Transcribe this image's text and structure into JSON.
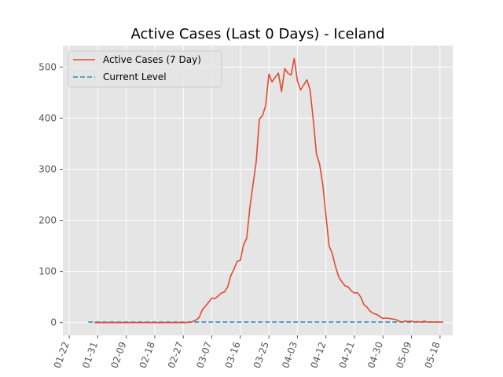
{
  "chart_data": {
    "type": "line",
    "title": "Active Cases (Last 0 Days) - Iceland",
    "xlabel": "",
    "ylabel": "",
    "x_start": "2020-01-28",
    "x_end": "2020-05-19",
    "xlim": [
      "2020-01-20",
      "2020-05-22"
    ],
    "ylim": [
      -25,
      542
    ],
    "x_ticks": [
      {
        "date": "2020-01-22",
        "label": "01-22"
      },
      {
        "date": "2020-01-31",
        "label": "01-31"
      },
      {
        "date": "2020-02-09",
        "label": "02-09"
      },
      {
        "date": "2020-02-18",
        "label": "02-18"
      },
      {
        "date": "2020-02-27",
        "label": "02-27"
      },
      {
        "date": "2020-03-07",
        "label": "03-07"
      },
      {
        "date": "2020-03-16",
        "label": "03-16"
      },
      {
        "date": "2020-03-25",
        "label": "03-25"
      },
      {
        "date": "2020-04-03",
        "label": "04-03"
      },
      {
        "date": "2020-04-12",
        "label": "04-12"
      },
      {
        "date": "2020-04-21",
        "label": "04-21"
      },
      {
        "date": "2020-04-30",
        "label": "04-30"
      },
      {
        "date": "2020-05-09",
        "label": "05-09"
      },
      {
        "date": "2020-05-18",
        "label": "05-18"
      }
    ],
    "y_ticks": [
      0,
      100,
      200,
      300,
      400,
      500
    ],
    "grid": true,
    "legend_position": "top-left",
    "series": [
      {
        "name": "Active Cases (7 Day)",
        "color": "#e24a33",
        "style": "solid",
        "points": [
          [
            "2020-01-30",
            0
          ],
          [
            "2020-02-07",
            0
          ],
          [
            "2020-02-15",
            0
          ],
          [
            "2020-02-22",
            0
          ],
          [
            "2020-02-28",
            0
          ],
          [
            "2020-03-01",
            2
          ],
          [
            "2020-03-02",
            5
          ],
          [
            "2020-03-03",
            10
          ],
          [
            "2020-03-04",
            25
          ],
          [
            "2020-03-05",
            32
          ],
          [
            "2020-03-06",
            40
          ],
          [
            "2020-03-07",
            48
          ],
          [
            "2020-03-08",
            47
          ],
          [
            "2020-03-09",
            52
          ],
          [
            "2020-03-10",
            58
          ],
          [
            "2020-03-11",
            60
          ],
          [
            "2020-03-12",
            70
          ],
          [
            "2020-03-13",
            92
          ],
          [
            "2020-03-14",
            105
          ],
          [
            "2020-03-15",
            120
          ],
          [
            "2020-03-16",
            122
          ],
          [
            "2020-03-17",
            152
          ],
          [
            "2020-03-18",
            165
          ],
          [
            "2020-03-19",
            225
          ],
          [
            "2020-03-20",
            270
          ],
          [
            "2020-03-21",
            315
          ],
          [
            "2020-03-22",
            398
          ],
          [
            "2020-03-23",
            405
          ],
          [
            "2020-03-24",
            425
          ],
          [
            "2020-03-25",
            486
          ],
          [
            "2020-03-26",
            471
          ],
          [
            "2020-03-27",
            480
          ],
          [
            "2020-03-28",
            488
          ],
          [
            "2020-03-29",
            452
          ],
          [
            "2020-03-30",
            497
          ],
          [
            "2020-03-31",
            488
          ],
          [
            "2020-04-01",
            484
          ],
          [
            "2020-04-02",
            517
          ],
          [
            "2020-04-03",
            473
          ],
          [
            "2020-04-04",
            455
          ],
          [
            "2020-04-05",
            465
          ],
          [
            "2020-04-06",
            475
          ],
          [
            "2020-04-07",
            455
          ],
          [
            "2020-04-08",
            397
          ],
          [
            "2020-04-09",
            330
          ],
          [
            "2020-04-10",
            310
          ],
          [
            "2020-04-11",
            270
          ],
          [
            "2020-04-12",
            210
          ],
          [
            "2020-04-13",
            150
          ],
          [
            "2020-04-14",
            135
          ],
          [
            "2020-04-15",
            110
          ],
          [
            "2020-04-16",
            90
          ],
          [
            "2020-04-17",
            80
          ],
          [
            "2020-04-18",
            72
          ],
          [
            "2020-04-19",
            70
          ],
          [
            "2020-04-20",
            62
          ],
          [
            "2020-04-21",
            58
          ],
          [
            "2020-04-22",
            58
          ],
          [
            "2020-04-23",
            50
          ],
          [
            "2020-04-24",
            35
          ],
          [
            "2020-04-25",
            30
          ],
          [
            "2020-04-26",
            22
          ],
          [
            "2020-04-27",
            18
          ],
          [
            "2020-04-28",
            16
          ],
          [
            "2020-04-29",
            12
          ],
          [
            "2020-04-30",
            8
          ],
          [
            "2020-05-01",
            9
          ],
          [
            "2020-05-02",
            8
          ],
          [
            "2020-05-03",
            7
          ],
          [
            "2020-05-04",
            6
          ],
          [
            "2020-05-05",
            3
          ],
          [
            "2020-05-06",
            1
          ],
          [
            "2020-05-07",
            3
          ],
          [
            "2020-05-08",
            2
          ],
          [
            "2020-05-09",
            3
          ],
          [
            "2020-05-10",
            1
          ],
          [
            "2020-05-11",
            2
          ],
          [
            "2020-05-12",
            1
          ],
          [
            "2020-05-13",
            3
          ],
          [
            "2020-05-14",
            1
          ],
          [
            "2020-05-15",
            1
          ],
          [
            "2020-05-16",
            1
          ],
          [
            "2020-05-17",
            1
          ],
          [
            "2020-05-18",
            1
          ],
          [
            "2020-05-19",
            1
          ]
        ]
      },
      {
        "name": "Current Level",
        "color": "#348abd",
        "style": "dashed",
        "points": [
          [
            "2020-01-28",
            1
          ],
          [
            "2020-05-19",
            1
          ]
        ]
      }
    ]
  }
}
